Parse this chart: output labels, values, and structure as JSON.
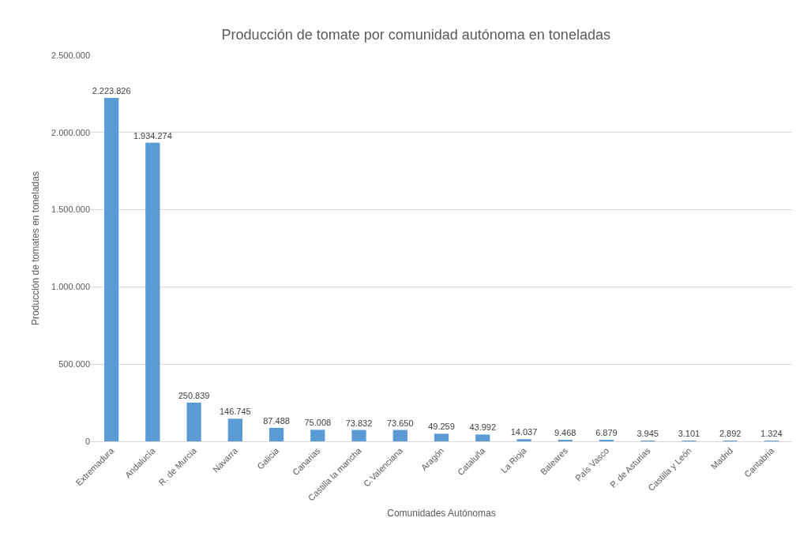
{
  "chart_data": {
    "type": "bar",
    "title": "Producción de tomate por comunidad autónoma en toneladas",
    "xlabel": "Comunidades Autónomas",
    "ylabel": "Producción de tomates en toneladas",
    "categories": [
      "Extremadura",
      "Andalucía",
      "R. de Murcia",
      "Navarra",
      "Galicia",
      "Canarias",
      "Castilla la mancha",
      "C.Valenciana",
      "Aragón",
      "Cataluña",
      "La Rioja",
      "Baleares",
      "País Vasco",
      "P. de Asturias",
      "Castilla y León",
      "Madrid",
      "Cantabria"
    ],
    "values": [
      2223826,
      1934274,
      250839,
      146745,
      87488,
      75008,
      73832,
      73650,
      49259,
      43992,
      14037,
      9468,
      6879,
      3945,
      3101,
      2892,
      1324
    ],
    "value_labels": [
      "2.223.826",
      "1.934.274",
      "250.839",
      "146.745",
      "87.488",
      "75.008",
      "73.832",
      "73.650",
      "49.259",
      "43.992",
      "14.037",
      "9.468",
      "6.879",
      "3.945",
      "3.101",
      "2.892",
      "1.324"
    ],
    "color": "#5b9bd5",
    "ylim": [
      0,
      2500000
    ],
    "yticks": [
      0,
      {
        "value": 500000,
        "label": "500.000"
      },
      {
        "value": 1000000,
        "label": "1.000.000"
      },
      {
        "value": 1500000,
        "label": "1.500.000"
      },
      {
        "value": 2000000,
        "label": "2.000.000"
      },
      {
        "value": 2500000,
        "label": "2.500.000"
      }
    ],
    "grid": "y"
  }
}
